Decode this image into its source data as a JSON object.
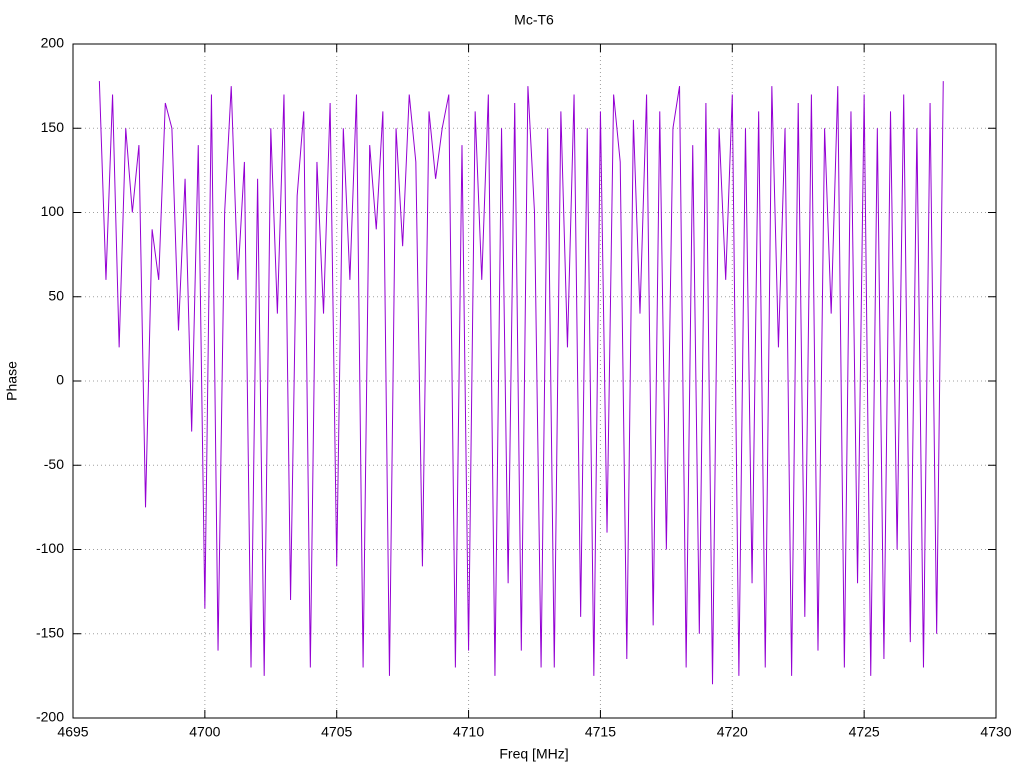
{
  "chart_data": {
    "type": "line",
    "title": "Mc-T6",
    "x_label": "Freq [MHz]",
    "y_label": "Phase",
    "x": [
      4696,
      4696.25,
      4696.5,
      4696.75,
      4697,
      4697.25,
      4697.5,
      4697.75,
      4698,
      4698.25,
      4698.5,
      4698.75,
      4699,
      4699.25,
      4699.5,
      4699.75,
      4700,
      4700.25,
      4700.5,
      4700.75,
      4701,
      4701.25,
      4701.5,
      4701.75,
      4702,
      4702.25,
      4702.5,
      4702.75,
      4703,
      4703.25,
      4703.5,
      4703.75,
      4704,
      4704.25,
      4704.5,
      4704.75,
      4705,
      4705.25,
      4705.5,
      4705.75,
      4706,
      4706.25,
      4706.5,
      4706.75,
      4707,
      4707.25,
      4707.5,
      4707.75,
      4708,
      4708.25,
      4708.5,
      4708.75,
      4709,
      4709.25,
      4709.5,
      4709.75,
      4710,
      4710.25,
      4710.5,
      4710.75,
      4711,
      4711.25,
      4711.5,
      4711.75,
      4712,
      4712.25,
      4712.5,
      4712.75,
      4713,
      4713.25,
      4713.5,
      4713.75,
      4714,
      4714.25,
      4714.5,
      4714.75,
      4715,
      4715.25,
      4715.5,
      4715.75,
      4716,
      4716.25,
      4716.5,
      4716.75,
      4717,
      4717.25,
      4717.5,
      4717.75,
      4718,
      4718.25,
      4718.5,
      4718.75,
      4719,
      4719.25,
      4719.5,
      4719.75,
      4720,
      4720.25,
      4720.5,
      4720.75,
      4721,
      4721.25,
      4721.5,
      4721.75,
      4722,
      4722.25,
      4722.5,
      4722.75,
      4723,
      4723.25,
      4723.5,
      4723.75,
      4724,
      4724.25,
      4724.5,
      4724.75,
      4725,
      4725.25,
      4725.5,
      4725.75,
      4726,
      4726.25,
      4726.5,
      4726.75,
      4727,
      4727.25,
      4727.5,
      4727.75,
      4728
    ],
    "values": [
      178,
      60,
      170,
      20,
      150,
      100,
      140,
      -75,
      90,
      60,
      165,
      150,
      30,
      120,
      -30,
      140,
      -135,
      170,
      -160,
      100,
      175,
      60,
      130,
      -170,
      120,
      -175,
      150,
      40,
      170,
      -130,
      110,
      160,
      -170,
      130,
      40,
      165,
      -110,
      150,
      60,
      170,
      -170,
      140,
      90,
      160,
      -175,
      150,
      80,
      170,
      130,
      -110,
      160,
      120,
      150,
      170,
      -170,
      140,
      -160,
      160,
      60,
      170,
      -175,
      150,
      -120,
      165,
      -160,
      175,
      100,
      -170,
      150,
      -170,
      160,
      20,
      170,
      -140,
      150,
      -175,
      160,
      -90,
      170,
      130,
      -165,
      155,
      40,
      170,
      -145,
      160,
      -100,
      150,
      175,
      -170,
      140,
      -150,
      165,
      -180,
      150,
      60,
      170,
      -175,
      150,
      -120,
      160,
      -170,
      175,
      20,
      150,
      -175,
      165,
      -140,
      170,
      -160,
      150,
      40,
      175,
      -170,
      160,
      -120,
      170,
      -175,
      150,
      -165,
      160,
      -100,
      170,
      -155,
      150,
      -170,
      165,
      -150,
      178
    ],
    "color": "#9400d3",
    "xlim": [
      4695,
      4730
    ],
    "xticks": [
      4695,
      4700,
      4705,
      4710,
      4715,
      4720,
      4725,
      4730
    ],
    "ylim": [
      -200,
      200
    ],
    "yticks": [
      -200,
      -150,
      -100,
      -50,
      0,
      50,
      100,
      150,
      200
    ],
    "grid": true
  }
}
